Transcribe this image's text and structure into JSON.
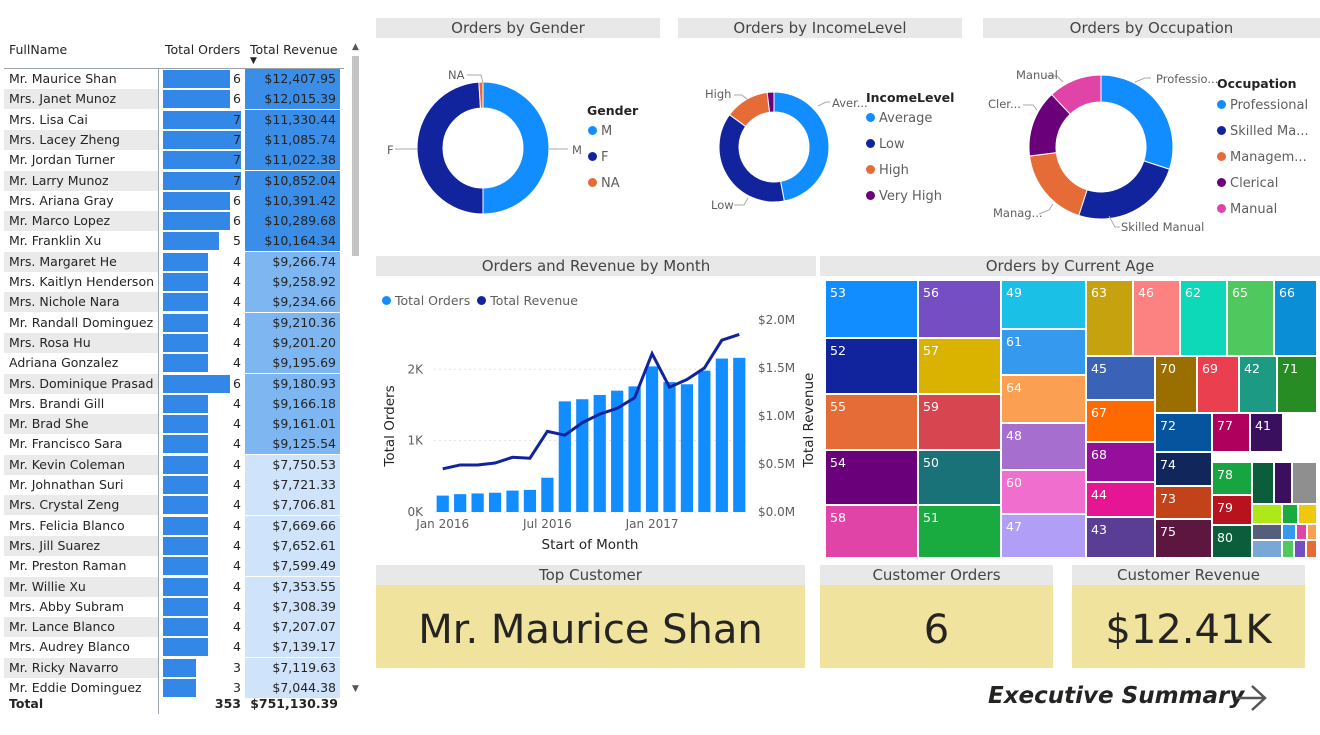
{
  "table": {
    "headers": {
      "name": "FullName",
      "orders": "Total Orders",
      "revenue": "Total Revenue"
    },
    "rows": [
      {
        "name": "Mr. Maurice Shan",
        "orders": "6",
        "revenue": "$12,407.95",
        "o": 6,
        "r": 12407.95
      },
      {
        "name": "Mrs. Janet Munoz",
        "orders": "6",
        "revenue": "$12,015.39",
        "o": 6,
        "r": 12015.39
      },
      {
        "name": "Mrs. Lisa Cai",
        "orders": "7",
        "revenue": "$11,330.44",
        "o": 7,
        "r": 11330.44
      },
      {
        "name": "Mrs. Lacey Zheng",
        "orders": "7",
        "revenue": "$11,085.74",
        "o": 7,
        "r": 11085.74
      },
      {
        "name": "Mr. Jordan Turner",
        "orders": "7",
        "revenue": "$11,022.38",
        "o": 7,
        "r": 11022.38
      },
      {
        "name": "Mr. Larry Munoz",
        "orders": "7",
        "revenue": "$10,852.04",
        "o": 7,
        "r": 10852.04
      },
      {
        "name": "Mrs. Ariana Gray",
        "orders": "6",
        "revenue": "$10,391.42",
        "o": 6,
        "r": 10391.42
      },
      {
        "name": "Mr. Marco Lopez",
        "orders": "6",
        "revenue": "$10,289.68",
        "o": 6,
        "r": 10289.68
      },
      {
        "name": "Mr. Franklin Xu",
        "orders": "5",
        "revenue": "$10,164.34",
        "o": 5,
        "r": 10164.34
      },
      {
        "name": "Mrs. Margaret He",
        "orders": "4",
        "revenue": "$9,266.74",
        "o": 4,
        "r": 9266.74
      },
      {
        "name": "Mrs. Kaitlyn Henderson",
        "orders": "4",
        "revenue": "$9,258.92",
        "o": 4,
        "r": 9258.92
      },
      {
        "name": "Mrs. Nichole Nara",
        "orders": "4",
        "revenue": "$9,234.66",
        "o": 4,
        "r": 9234.66
      },
      {
        "name": "Mr. Randall Dominguez",
        "orders": "4",
        "revenue": "$9,210.36",
        "o": 4,
        "r": 9210.36
      },
      {
        "name": "Mrs. Rosa Hu",
        "orders": "4",
        "revenue": "$9,201.20",
        "o": 4,
        "r": 9201.2
      },
      {
        "name": "Adriana Gonzalez",
        "orders": "4",
        "revenue": "$9,195.69",
        "o": 4,
        "r": 9195.69
      },
      {
        "name": "Mrs. Dominique Prasad",
        "orders": "6",
        "revenue": "$9,180.93",
        "o": 6,
        "r": 9180.93
      },
      {
        "name": "Mrs. Brandi Gill",
        "orders": "4",
        "revenue": "$9,166.18",
        "o": 4,
        "r": 9166.18
      },
      {
        "name": "Mr. Brad She",
        "orders": "4",
        "revenue": "$9,161.01",
        "o": 4,
        "r": 9161.01
      },
      {
        "name": "Mr. Francisco Sara",
        "orders": "4",
        "revenue": "$9,125.54",
        "o": 4,
        "r": 9125.54
      },
      {
        "name": "Mr. Kevin Coleman",
        "orders": "4",
        "revenue": "$7,750.53",
        "o": 4,
        "r": 7750.53
      },
      {
        "name": "Mr. Johnathan Suri",
        "orders": "4",
        "revenue": "$7,721.33",
        "o": 4,
        "r": 7721.33
      },
      {
        "name": "Mrs. Crystal Zeng",
        "orders": "4",
        "revenue": "$7,706.81",
        "o": 4,
        "r": 7706.81
      },
      {
        "name": "Mrs. Felicia Blanco",
        "orders": "4",
        "revenue": "$7,669.66",
        "o": 4,
        "r": 7669.66
      },
      {
        "name": "Mrs. Jill Suarez",
        "orders": "4",
        "revenue": "$7,652.61",
        "o": 4,
        "r": 7652.61
      },
      {
        "name": "Mr. Preston Raman",
        "orders": "4",
        "revenue": "$7,599.49",
        "o": 4,
        "r": 7599.49
      },
      {
        "name": "Mr. Willie Xu",
        "orders": "4",
        "revenue": "$7,353.55",
        "o": 4,
        "r": 7353.55
      },
      {
        "name": "Mrs. Abby Subram",
        "orders": "4",
        "revenue": "$7,308.39",
        "o": 4,
        "r": 7308.39
      },
      {
        "name": "Mr. Lance Blanco",
        "orders": "4",
        "revenue": "$7,207.07",
        "o": 4,
        "r": 7207.07
      },
      {
        "name": "Mrs. Audrey Blanco",
        "orders": "4",
        "revenue": "$7,139.17",
        "o": 4,
        "r": 7139.17
      },
      {
        "name": "Mr. Ricky Navarro",
        "orders": "3",
        "revenue": "$7,119.63",
        "o": 3,
        "r": 7119.63
      },
      {
        "name": "Mr. Eddie Dominguez",
        "orders": "3",
        "revenue": "$7,044.38",
        "o": 3,
        "r": 7044.38
      }
    ],
    "total": {
      "label": "Total",
      "orders": "353",
      "revenue": "$751,130.39"
    },
    "colors": {
      "orders_bar": "#3287e7",
      "revenue_high": "#3a8ee8",
      "revenue_mid": "#7db6f1",
      "revenue_low": "#cfe4fa"
    }
  },
  "gender": {
    "title": "Orders by Gender",
    "legend_title": "Gender",
    "legend": [
      {
        "label": "M",
        "color": "#118dff"
      },
      {
        "label": "F",
        "color": "#12239e"
      },
      {
        "label": "NA",
        "color": "#e66c37"
      }
    ],
    "labels": {
      "na": "NA",
      "f": "F",
      "m": "M"
    }
  },
  "income": {
    "title": "Orders by IncomeLevel",
    "legend_title": "IncomeLevel",
    "legend": [
      {
        "label": "Average",
        "color": "#118dff"
      },
      {
        "label": "Low",
        "color": "#12239e"
      },
      {
        "label": "High",
        "color": "#e66c37"
      },
      {
        "label": "Very High",
        "color": "#6b007b"
      }
    ],
    "labels": {
      "high": "High",
      "average": "Aver...",
      "low": "Low"
    }
  },
  "occupation": {
    "title": "Orders by Occupation",
    "legend_title": "Occupation",
    "legend": [
      {
        "label": "Professional",
        "color": "#118dff"
      },
      {
        "label": "Skilled Ma...",
        "color": "#12239e"
      },
      {
        "label": "Managem...",
        "color": "#e66c37"
      },
      {
        "label": "Clerical",
        "color": "#6b007b"
      },
      {
        "label": "Manual",
        "color": "#e044a7"
      }
    ],
    "labels": {
      "manual": "Manual",
      "professional": "Professio...",
      "clerical": "Cler...",
      "management": "Manag...",
      "skilled": "Skilled Manual"
    }
  },
  "chart_data": [
    {
      "type": "pie",
      "title": "Orders by Gender",
      "labels": [
        "M",
        "F",
        "NA"
      ],
      "values": [
        50,
        49,
        1
      ]
    },
    {
      "type": "pie",
      "title": "Orders by IncomeLevel",
      "labels": [
        "Average",
        "Low",
        "High",
        "Very High"
      ],
      "values": [
        47,
        38,
        13,
        2
      ]
    },
    {
      "type": "pie",
      "title": "Orders by Occupation",
      "labels": [
        "Professional",
        "Skilled Manual",
        "Management",
        "Clerical",
        "Manual"
      ],
      "values": [
        30,
        25,
        18,
        15,
        12
      ]
    },
    {
      "type": "bar",
      "title": "Orders and Revenue by Month",
      "xlabel": "Start of Month",
      "ylabel": "Total Orders",
      "y2label": "Total Revenue",
      "legend": [
        "Total Orders",
        "Total Revenue"
      ],
      "x_ticks": [
        "Jan 2016",
        "Jul 2016",
        "Jan 2017"
      ],
      "y_ticks": [
        "0K",
        "1K",
        "2K"
      ],
      "y2_ticks": [
        "$0.0M",
        "$0.5M",
        "$1.0M",
        "$1.5M",
        "$2.0M"
      ],
      "ylim": [
        0,
        2550
      ],
      "y2lim": [
        0,
        2.0
      ],
      "categories": [
        "Jan 2016",
        "Feb 2016",
        "Mar 2016",
        "Apr 2016",
        "May 2016",
        "Jun 2016",
        "Jul 2016",
        "Aug 2016",
        "Sep 2016",
        "Oct 2016",
        "Nov 2016",
        "Dec 2016",
        "Jan 2017",
        "Feb 2017",
        "Mar 2017",
        "Apr 2017",
        "May 2017",
        "Jun 2017"
      ],
      "series": [
        {
          "name": "Total Orders",
          "kind": "bar",
          "values": [
            230,
            250,
            260,
            270,
            300,
            310,
            480,
            1550,
            1580,
            1640,
            1700,
            1760,
            2040,
            1820,
            1790,
            1980,
            2150,
            2160
          ]
        },
        {
          "name": "Total Revenue",
          "kind": "line",
          "axis": "right",
          "values": [
            0.45,
            0.49,
            0.49,
            0.51,
            0.57,
            0.56,
            0.84,
            0.8,
            0.93,
            1.02,
            1.08,
            1.19,
            1.65,
            1.3,
            1.38,
            1.5,
            1.79,
            1.85
          ]
        }
      ],
      "colors": {
        "bar": "#118dff",
        "line": "#12239e"
      }
    },
    {
      "type": "treemap",
      "title": "Orders by Current Age",
      "labels": [
        "53",
        "56",
        "49",
        "63",
        "46",
        "62",
        "65",
        "66",
        "52",
        "57",
        "61",
        "45",
        "70",
        "69",
        "42",
        "71",
        "55",
        "59",
        "64",
        "67",
        "72",
        "77",
        "41",
        "54",
        "50",
        "48",
        "68",
        "74",
        "78",
        "60",
        "44",
        "73",
        "79",
        "58",
        "51",
        "47",
        "43",
        "75",
        "80"
      ]
    }
  ],
  "monthly": {
    "title": "Orders and Revenue by Month",
    "legend": [
      {
        "label": "Total Orders",
        "color": "#118dff"
      },
      {
        "label": "Total Revenue",
        "color": "#12239e"
      }
    ],
    "xlabel": "Start of Month",
    "ylabel": "Total Orders",
    "y2label": "Total Revenue",
    "x_ticks": [
      "Jan 2016",
      "Jul 2016",
      "Jan 2017"
    ],
    "y_ticks": [
      "0K",
      "1K",
      "2K"
    ],
    "y2_ticks": [
      "$0.0M",
      "$0.5M",
      "$1.0M",
      "$1.5M",
      "$2.0M"
    ]
  },
  "treemap": {
    "title": "Orders by Current Age",
    "cells": [
      {
        "label": "53",
        "color": "#118dff"
      },
      {
        "label": "56",
        "color": "#744ec2"
      },
      {
        "label": "49",
        "color": "#1bc0e6"
      },
      {
        "label": "63",
        "color": "#c7a20f"
      },
      {
        "label": "46",
        "color": "#fb8281"
      },
      {
        "label": "62",
        "color": "#0dd9b8"
      },
      {
        "label": "65",
        "color": "#4fc85e"
      },
      {
        "label": "66",
        "color": "#0a8fd6"
      },
      {
        "label": "52",
        "color": "#12239e"
      },
      {
        "label": "57",
        "color": "#d9b300"
      },
      {
        "label": "61",
        "color": "#3599ed"
      },
      {
        "label": "45",
        "color": "#3a62b7"
      },
      {
        "label": "70",
        "color": "#9a6f00"
      },
      {
        "label": "69",
        "color": "#ea3f4f"
      },
      {
        "label": "42",
        "color": "#1d9a84"
      },
      {
        "label": "71",
        "color": "#278c23"
      },
      {
        "label": "55",
        "color": "#e66c37"
      },
      {
        "label": "59",
        "color": "#d64550"
      },
      {
        "label": "64",
        "color": "#fb9f52"
      },
      {
        "label": "67",
        "color": "#ff6a00"
      },
      {
        "label": "72",
        "color": "#07549e"
      },
      {
        "label": "77",
        "color": "#b0005e"
      },
      {
        "label": "41",
        "color": "#3a0f5e"
      },
      {
        "label": "54",
        "color": "#6b007b"
      },
      {
        "label": "50",
        "color": "#197278"
      },
      {
        "label": "48",
        "color": "#a66fcf"
      },
      {
        "label": "68",
        "color": "#950f9c"
      },
      {
        "label": "74",
        "color": "#11265a"
      },
      {
        "label": "78",
        "color": "#16a540"
      },
      {
        "label": "60",
        "color": "#f06ece"
      },
      {
        "label": "44",
        "color": "#e51593"
      },
      {
        "label": "73",
        "color": "#c2421a"
      },
      {
        "label": "79",
        "color": "#b8121f"
      },
      {
        "label": "58",
        "color": "#e044a7"
      },
      {
        "label": "51",
        "color": "#1aab40"
      },
      {
        "label": "47",
        "color": "#b19ef6"
      },
      {
        "label": "43",
        "color": "#5a3e95"
      },
      {
        "label": "75",
        "color": "#5c1640"
      },
      {
        "label": "80",
        "color": "#0b5d3b"
      }
    ]
  },
  "cards": {
    "top_customer": {
      "title": "Top Customer",
      "value": "Mr. Maurice Shan"
    },
    "orders": {
      "title": "Customer Orders",
      "value": "6"
    },
    "revenue": {
      "title": "Customer Revenue",
      "value": "$12.41K"
    }
  },
  "nav": {
    "label": "Executive Summary",
    "icon": "arrow-right-icon"
  }
}
